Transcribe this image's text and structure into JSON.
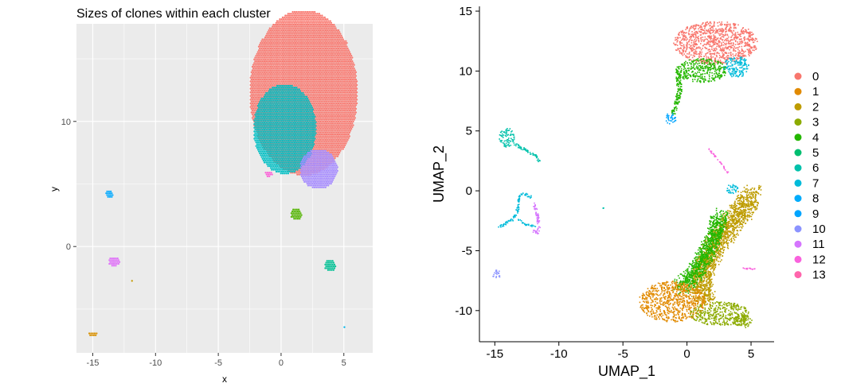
{
  "chart_data": [
    {
      "type": "scatter",
      "title": "Sizes of clones within each cluster",
      "xlabel": "x",
      "ylabel": "y",
      "xlim": [
        -16.3,
        7.3
      ],
      "ylim": [
        -8.5,
        17.8
      ],
      "x_ticks": [
        -15,
        -10,
        -5,
        0,
        5
      ],
      "x_tick_labels": [
        "-15",
        "-10",
        "-5",
        "0",
        "5"
      ],
      "y_ticks": [
        0,
        10
      ],
      "y_tick_labels": [
        "0",
        "10"
      ],
      "grid": true,
      "background": "#ebebeb",
      "clusters": [
        {
          "cluster": "0",
          "cx": 1.8,
          "cy": 12.3,
          "rx": 4.3,
          "ry": 6.6,
          "color": "#F8766D"
        },
        {
          "cluster": "7",
          "cx": 0.3,
          "cy": 9.4,
          "rx": 2.5,
          "ry": 3.6,
          "color": "#00BFC4"
        },
        {
          "cluster": "10",
          "cx": 3.0,
          "cy": 6.2,
          "rx": 1.5,
          "ry": 1.6,
          "color": "#A58AFF"
        },
        {
          "cluster": "12",
          "cx": -1.0,
          "cy": 5.8,
          "rx": 0.3,
          "ry": 0.25,
          "color": "#FB61D7"
        },
        {
          "cluster": "4",
          "cx": 1.2,
          "cy": 2.6,
          "rx": 0.45,
          "ry": 0.5,
          "color": "#53B400"
        },
        {
          "cluster": "8",
          "cx": -13.7,
          "cy": 4.2,
          "rx": 0.3,
          "ry": 0.35,
          "color": "#00A9FF"
        },
        {
          "cluster": "11",
          "cx": -13.3,
          "cy": -1.2,
          "rx": 0.45,
          "ry": 0.4,
          "color": "#DF70F8"
        },
        {
          "cluster": "6",
          "cx": 3.9,
          "cy": -1.5,
          "rx": 0.45,
          "ry": 0.5,
          "color": "#00C094"
        },
        {
          "cluster": "2",
          "cx": -11.9,
          "cy": -2.7,
          "rx": 0.12,
          "ry": 0.1,
          "color": "#C49A00"
        },
        {
          "cluster": "1",
          "cx": -15.0,
          "cy": -7.0,
          "rx": 0.35,
          "ry": 0.2,
          "color": "#D89000"
        },
        {
          "cluster": "5",
          "cx": 5.0,
          "cy": -6.4,
          "rx": 0.1,
          "ry": 0.1,
          "color": "#00B6EB"
        }
      ]
    },
    {
      "type": "scatter",
      "title": "",
      "xlabel": "UMAP_1",
      "ylabel": "UMAP_2",
      "xlim": [
        -16.2,
        6.8
      ],
      "ylim": [
        -12.6,
        15.4
      ],
      "x_ticks": [
        -15,
        -10,
        -5,
        0,
        5
      ],
      "x_tick_labels": [
        "-15",
        "-10",
        "-5",
        "0",
        "5"
      ],
      "y_ticks": [
        -10,
        -5,
        0,
        5,
        10,
        15
      ],
      "y_tick_labels": [
        "-10",
        "-5",
        "0",
        "5",
        "10",
        "15"
      ],
      "grid": false,
      "legend_position": "right",
      "legend": [
        {
          "label": "0",
          "color": "#F8766D"
        },
        {
          "label": "1",
          "color": "#E18A00"
        },
        {
          "label": "2",
          "color": "#BE9C00"
        },
        {
          "label": "3",
          "color": "#8CAB00"
        },
        {
          "label": "4",
          "color": "#24B700"
        },
        {
          "label": "5",
          "color": "#00BE70"
        },
        {
          "label": "6",
          "color": "#00C1AB"
        },
        {
          "label": "7",
          "color": "#00BBDA"
        },
        {
          "label": "8",
          "color": "#00ACFC"
        },
        {
          "label": "9",
          "color": "#00A5FF"
        },
        {
          "label": "10",
          "color": "#8B93FF"
        },
        {
          "label": "11",
          "color": "#D575FE"
        },
        {
          "label": "12",
          "color": "#F962DD"
        },
        {
          "label": "13",
          "color": "#FF65AC"
        }
      ],
      "groups": [
        {
          "cluster": "0",
          "shape": "blob",
          "cx": 2.2,
          "cy": 12.4,
          "rx": 3.3,
          "ry": 1.8,
          "color": "#F8766D"
        },
        {
          "cluster": "4",
          "shape": "blob",
          "cx": 1.1,
          "cy": 10.1,
          "rx": 2.0,
          "ry": 1.0,
          "color": "#24B700"
        },
        {
          "cluster": "4",
          "shape": "path",
          "points": [
            [
              -0.8,
              10
            ],
            [
              -0.6,
              8.5
            ],
            [
              -0.9,
              7.2
            ],
            [
              -1.1,
              6.5
            ]
          ],
          "width": 0.35,
          "color": "#24B700"
        },
        {
          "cluster": "7",
          "shape": "blob",
          "cx": 3.8,
          "cy": 10.4,
          "rx": 1.0,
          "ry": 0.9,
          "color": "#00BBDA"
        },
        {
          "cluster": "9",
          "shape": "blob",
          "cx": -1.3,
          "cy": 6.1,
          "rx": 0.4,
          "ry": 0.5,
          "color": "#00A5FF"
        },
        {
          "cluster": "6",
          "shape": "blob",
          "cx": -14.1,
          "cy": 4.5,
          "rx": 0.6,
          "ry": 0.8,
          "color": "#00C1AB"
        },
        {
          "cluster": "6",
          "shape": "path",
          "points": [
            [
              -13.6,
              4
            ],
            [
              -12.6,
              3.4
            ],
            [
              -11.9,
              3.0
            ],
            [
              -11.5,
              2.5
            ]
          ],
          "width": 0.2,
          "color": "#00C1AB"
        },
        {
          "cluster": "7",
          "shape": "path",
          "points": [
            [
              -14.7,
              -3.0
            ],
            [
              -13.6,
              -2.3
            ],
            [
              -13.2,
              -1.4
            ],
            [
              -13.2,
              -0.5
            ],
            [
              -12.8,
              -0.2
            ],
            [
              -12.2,
              -0.5
            ]
          ],
          "width": 0.18,
          "color": "#00BBDA"
        },
        {
          "cluster": "7",
          "shape": "path",
          "points": [
            [
              -13.2,
              -2.4
            ],
            [
              -12.6,
              -2.8
            ],
            [
              -11.9,
              -2.9
            ]
          ],
          "width": 0.15,
          "color": "#00BBDA"
        },
        {
          "cluster": "11",
          "shape": "path",
          "points": [
            [
              -12.0,
              -1.0
            ],
            [
              -11.7,
              -2.0
            ],
            [
              -11.6,
              -3.0
            ]
          ],
          "width": 0.2,
          "color": "#D575FE"
        },
        {
          "cluster": "11",
          "shape": "blob",
          "cx": -11.8,
          "cy": -3.3,
          "rx": 0.3,
          "ry": 0.3,
          "color": "#D575FE"
        },
        {
          "cluster": "10",
          "shape": "blob",
          "cx": -14.9,
          "cy": -6.9,
          "rx": 0.35,
          "ry": 0.35,
          "color": "#8B93FF"
        },
        {
          "cluster": "12",
          "shape": "path",
          "points": [
            [
              1.6,
              3.6
            ],
            [
              2.5,
              2.5
            ],
            [
              3.2,
              1.5
            ]
          ],
          "width": 0.1,
          "color": "#F962DD"
        },
        {
          "cluster": "7",
          "shape": "blob",
          "cx": 3.5,
          "cy": 0.2,
          "rx": 0.5,
          "ry": 0.4,
          "color": "#00BBDA"
        },
        {
          "cluster": "2",
          "shape": "path",
          "points": [
            [
              5.0,
              -0.2
            ],
            [
              4.3,
              -1.5
            ],
            [
              3.2,
              -3.0
            ],
            [
              2.2,
              -4.5
            ],
            [
              1.2,
              -6.5
            ],
            [
              1.0,
              -8.0
            ],
            [
              1.5,
              -9.0
            ]
          ],
          "width": 1.5,
          "color": "#BE9C00"
        },
        {
          "cluster": "4",
          "shape": "path",
          "points": [
            [
              2.6,
              -2.0
            ],
            [
              2.0,
              -4.0
            ],
            [
              1.3,
              -5.5
            ],
            [
              0.5,
              -7.0
            ],
            [
              -0.5,
              -8.0
            ]
          ],
          "width": 1.2,
          "color": "#24B700"
        },
        {
          "cluster": "1",
          "shape": "blob",
          "cx": -1.2,
          "cy": -9.2,
          "rx": 2.6,
          "ry": 1.7,
          "color": "#E18A00"
        },
        {
          "cluster": "3",
          "shape": "blob",
          "cx": 2.5,
          "cy": -10.2,
          "rx": 2.3,
          "ry": 1.0,
          "color": "#8CAB00"
        },
        {
          "cluster": "3",
          "shape": "blob",
          "cx": 4.3,
          "cy": -10.8,
          "rx": 0.8,
          "ry": 0.6,
          "color": "#8CAB00"
        },
        {
          "cluster": "12",
          "shape": "path",
          "points": [
            [
              4.2,
              -6.4
            ],
            [
              5.3,
              -6.5
            ]
          ],
          "width": 0.1,
          "color": "#F962DD"
        },
        {
          "cluster": "6",
          "shape": "path",
          "points": [
            [
              -6.6,
              -1.4
            ],
            [
              -6.5,
              -1.5
            ]
          ],
          "width": 0.1,
          "color": "#00C1AB"
        }
      ]
    }
  ]
}
